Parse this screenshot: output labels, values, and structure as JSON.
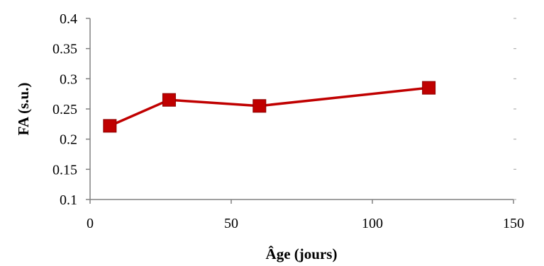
{
  "chart_data": {
    "type": "line",
    "xlabel": "Âge (jours)",
    "ylabel": "FA (s.u.)",
    "xlim": [
      0,
      150
    ],
    "ylim": [
      0.1,
      0.4
    ],
    "x_ticks": [
      "0",
      "50",
      "100",
      "150"
    ],
    "y_ticks": [
      "0.1",
      "0.15",
      "0.2",
      "0.25",
      "0.3",
      "0.35",
      "0.4"
    ],
    "grid": false,
    "legend": "none",
    "series": [
      {
        "x": [
          7,
          28,
          60,
          120
        ],
        "y": [
          0.222,
          0.265,
          0.255,
          0.285
        ],
        "color": "#c00000",
        "marker": "square"
      }
    ]
  }
}
